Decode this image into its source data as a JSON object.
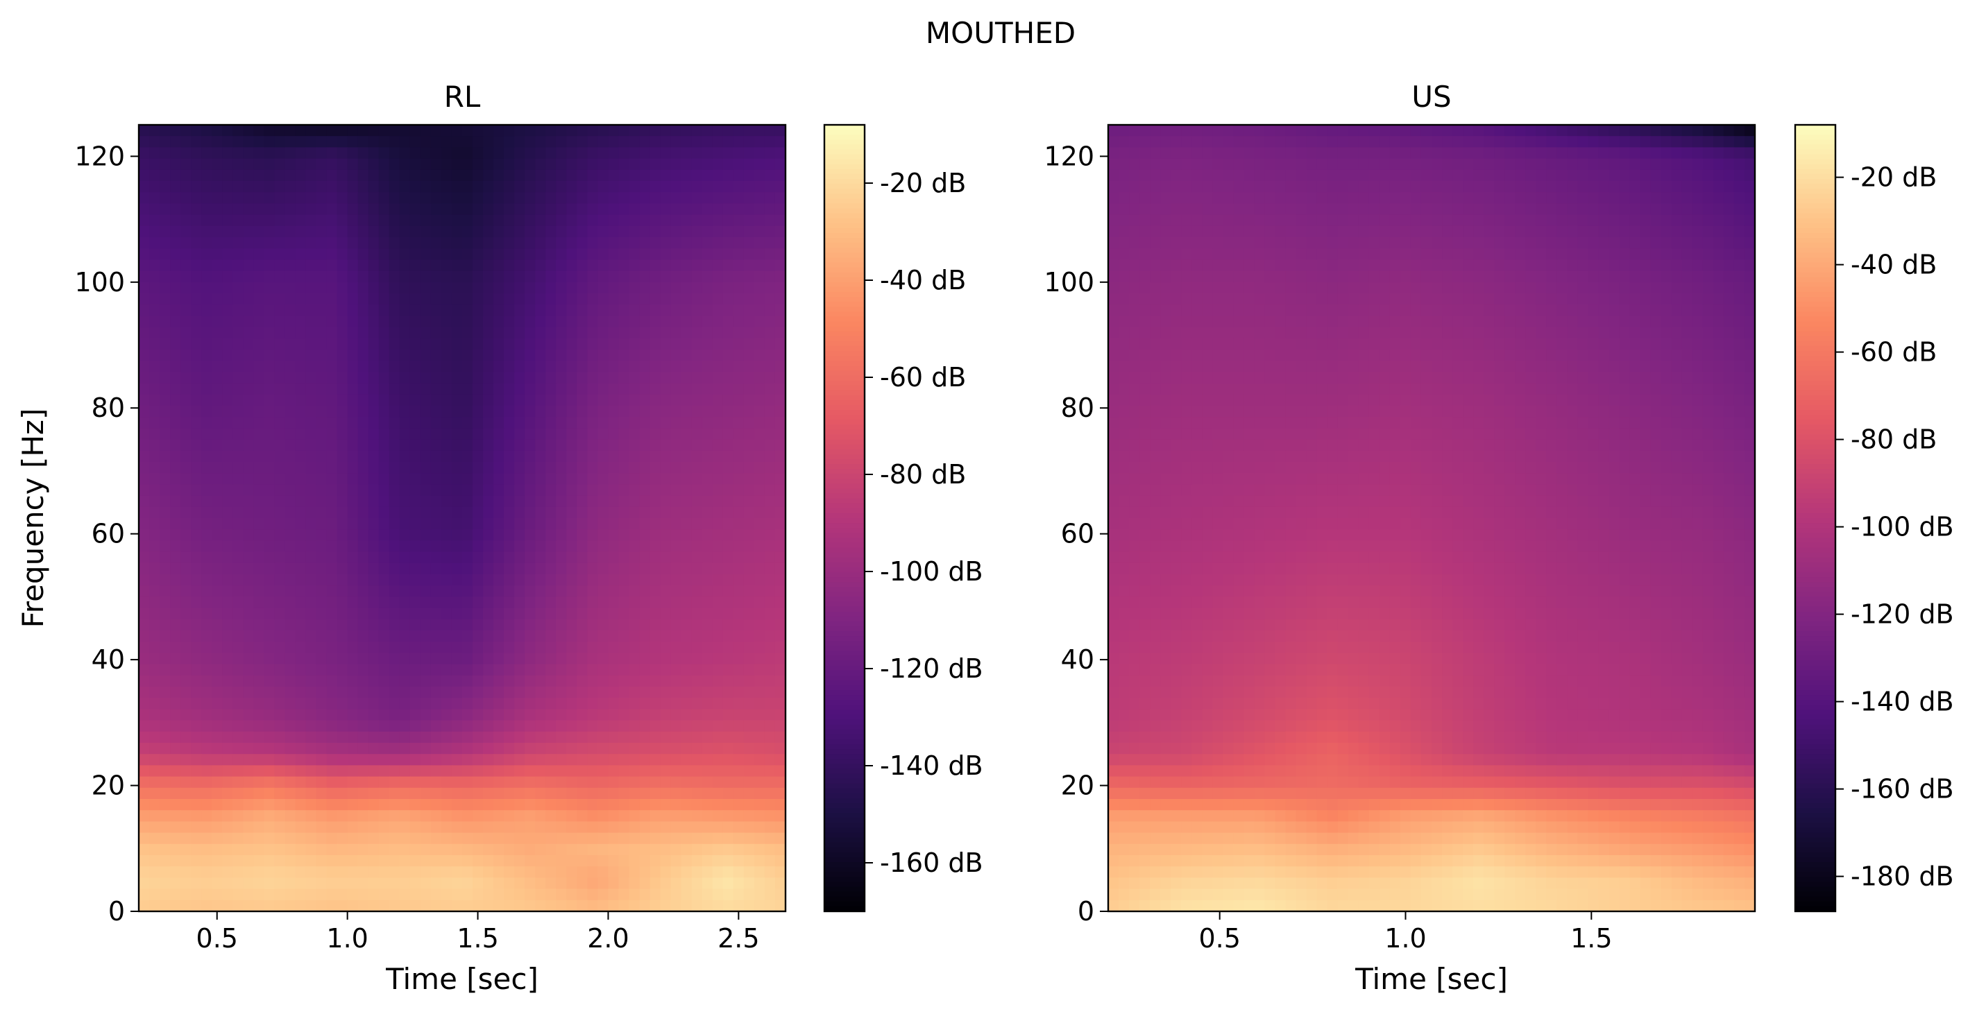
{
  "suptitle": "MOUTHED",
  "colormap": "magma",
  "colormap_stops": [
    "#000004",
    "#1c1044",
    "#4f127b",
    "#812581",
    "#b5367a",
    "#e55964",
    "#fb8761",
    "#fec287",
    "#fcfdbf"
  ],
  "chart_data": [
    {
      "type": "heatmap",
      "title": "RL",
      "xlabel": "Time [sec]",
      "ylabel": "Frequency [Hz]",
      "xlim": [
        0.2,
        2.68
      ],
      "ylim": [
        0,
        125
      ],
      "xticks": [
        0.5,
        1.0,
        1.5,
        2.0,
        2.5
      ],
      "xtick_labels": [
        "0.5",
        "1.0",
        "1.5",
        "2.0",
        "2.5"
      ],
      "yticks": [
        0,
        20,
        40,
        60,
        80,
        100,
        120
      ],
      "ytick_labels": [
        "0",
        "20",
        "40",
        "60",
        "80",
        "100",
        "120"
      ],
      "colorbar": {
        "vmin": -170,
        "vmax": -8,
        "ticks": [
          -20,
          -40,
          -60,
          -80,
          -100,
          -120,
          -140,
          -160
        ],
        "tick_labels": [
          "-20 dB",
          "-40 dB",
          "-60 dB",
          "-80 dB",
          "-100 dB",
          "-120 dB",
          "-140 dB",
          "-160 dB"
        ]
      },
      "times": [
        0.2,
        0.45,
        0.7,
        0.95,
        1.2,
        1.45,
        1.7,
        1.95,
        2.2,
        2.45,
        2.68
      ],
      "freqs": [
        0,
        5,
        10,
        15,
        20,
        25,
        30,
        40,
        60,
        80,
        100,
        120,
        125
      ],
      "values_db": [
        [
          -25,
          -27,
          -26,
          -28,
          -26,
          -25,
          -26,
          -30,
          -24,
          -20,
          -22
        ],
        [
          -22,
          -24,
          -22,
          -24,
          -24,
          -22,
          -30,
          -38,
          -26,
          -16,
          -24
        ],
        [
          -28,
          -30,
          -28,
          -32,
          -30,
          -32,
          -36,
          -32,
          -30,
          -26,
          -30
        ],
        [
          -40,
          -42,
          -36,
          -42,
          -38,
          -44,
          -40,
          -46,
          -40,
          -42,
          -44
        ],
        [
          -58,
          -60,
          -54,
          -64,
          -60,
          -62,
          -58,
          -62,
          -58,
          -60,
          -60
        ],
        [
          -82,
          -86,
          -88,
          -94,
          -96,
          -90,
          -80,
          -76,
          -74,
          -72,
          -74
        ],
        [
          -92,
          -96,
          -100,
          -106,
          -112,
          -104,
          -92,
          -86,
          -82,
          -80,
          -80
        ],
        [
          -100,
          -104,
          -108,
          -112,
          -118,
          -118,
          -104,
          -94,
          -90,
          -88,
          -86
        ],
        [
          -108,
          -114,
          -116,
          -118,
          -132,
          -134,
          -118,
          -104,
          -98,
          -96,
          -94
        ],
        [
          -116,
          -122,
          -120,
          -122,
          -136,
          -140,
          -126,
          -112,
          -106,
          -104,
          -102
        ],
        [
          -124,
          -128,
          -126,
          -126,
          -142,
          -144,
          -134,
          -122,
          -116,
          -112,
          -110
        ],
        [
          -138,
          -142,
          -144,
          -140,
          -152,
          -156,
          -146,
          -138,
          -134,
          -132,
          -130
        ],
        [
          -146,
          -150,
          -158,
          -160,
          -156,
          -154,
          -150,
          -146,
          -142,
          -140,
          -140
        ]
      ]
    },
    {
      "type": "heatmap",
      "title": "US",
      "xlabel": "Time [sec]",
      "ylabel": "",
      "xlim": [
        0.2,
        1.94
      ],
      "ylim": [
        0,
        125
      ],
      "xticks": [
        0.5,
        1.0,
        1.5
      ],
      "xtick_labels": [
        "0.5",
        "1.0",
        "1.5"
      ],
      "yticks": [
        0,
        20,
        40,
        60,
        80,
        100,
        120
      ],
      "ytick_labels": [
        "0",
        "20",
        "40",
        "60",
        "80",
        "100",
        "120"
      ],
      "colorbar": {
        "vmin": -188,
        "vmax": -8,
        "ticks": [
          -20,
          -40,
          -60,
          -80,
          -100,
          -120,
          -140,
          -160,
          -180
        ],
        "tick_labels": [
          "-20 dB",
          "-40 dB",
          "-60 dB",
          "-80 dB",
          "-100 dB",
          "-120 dB",
          "-140 dB",
          "-160 dB",
          "-180 dB"
        ]
      },
      "times": [
        0.2,
        0.4,
        0.6,
        0.8,
        1.0,
        1.2,
        1.4,
        1.6,
        1.8,
        1.94
      ],
      "freqs": [
        0,
        5,
        10,
        15,
        20,
        25,
        30,
        40,
        60,
        80,
        100,
        120,
        125
      ],
      "values_db": [
        [
          -26,
          -18,
          -16,
          -22,
          -22,
          -20,
          -22,
          -26,
          -28,
          -30
        ],
        [
          -30,
          -24,
          -22,
          -26,
          -24,
          -18,
          -24,
          -26,
          -34,
          -38
        ],
        [
          -36,
          -34,
          -32,
          -38,
          -34,
          -28,
          -36,
          -42,
          -46,
          -50
        ],
        [
          -44,
          -44,
          -44,
          -54,
          -44,
          -40,
          -48,
          -54,
          -58,
          -62
        ],
        [
          -68,
          -70,
          -68,
          -66,
          -70,
          -72,
          -76,
          -80,
          -80,
          -84
        ],
        [
          -88,
          -86,
          -78,
          -70,
          -80,
          -90,
          -96,
          -96,
          -98,
          -104
        ],
        [
          -94,
          -90,
          -84,
          -78,
          -84,
          -92,
          -98,
          -100,
          -102,
          -106
        ],
        [
          -96,
          -94,
          -90,
          -86,
          -88,
          -94,
          -100,
          -102,
          -106,
          -110
        ],
        [
          -104,
          -102,
          -100,
          -98,
          -98,
          -102,
          -106,
          -110,
          -112,
          -116
        ],
        [
          -110,
          -108,
          -108,
          -108,
          -106,
          -108,
          -112,
          -116,
          -120,
          -124
        ],
        [
          -116,
          -114,
          -114,
          -116,
          -114,
          -116,
          -120,
          -124,
          -128,
          -132
        ],
        [
          -124,
          -122,
          -124,
          -126,
          -126,
          -128,
          -132,
          -136,
          -142,
          -148
        ],
        [
          -130,
          -128,
          -130,
          -134,
          -136,
          -140,
          -150,
          -160,
          -172,
          -186
        ]
      ]
    }
  ]
}
